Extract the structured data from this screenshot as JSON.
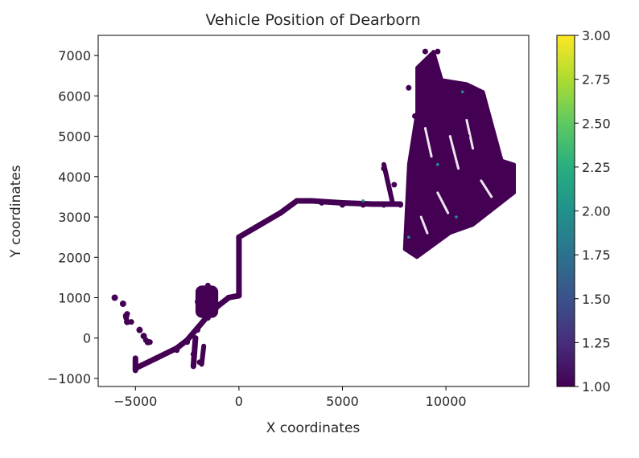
{
  "chart_data": {
    "type": "scatter",
    "title": "Vehicle Position of Dearborn",
    "xlabel": "X coordinates",
    "ylabel": "Y coordinates",
    "xlim": [
      -6800,
      14000
    ],
    "ylim": [
      -1200,
      7500
    ],
    "xticks": [
      -5000,
      0,
      5000,
      10000
    ],
    "xtick_labels": [
      "−5000",
      "0",
      "5000",
      "10000"
    ],
    "yticks": [
      -1000,
      0,
      1000,
      2000,
      3000,
      4000,
      5000,
      6000,
      7000
    ],
    "ytick_labels": [
      "−1000",
      "0",
      "1000",
      "2000",
      "3000",
      "4000",
      "5000",
      "6000",
      "7000"
    ],
    "grid": false,
    "colormap": "viridis",
    "colorbar": {
      "min": 1.0,
      "max": 3.0,
      "ticks": [
        1.0,
        1.25,
        1.5,
        1.75,
        2.0,
        2.25,
        2.5,
        2.75,
        3.0
      ],
      "tick_labels": [
        "1.00",
        "1.25",
        "1.50",
        "1.75",
        "2.00",
        "2.25",
        "2.50",
        "2.75",
        "3.00"
      ]
    },
    "point_color": "#440154",
    "accent_color": "#21918c",
    "points": [
      {
        "x": -6000,
        "y": 1000
      },
      {
        "x": -5600,
        "y": 850
      },
      {
        "x": -5400,
        "y": 600
      },
      {
        "x": -5200,
        "y": 400
      },
      {
        "x": -5450,
        "y": 500
      },
      {
        "x": -4800,
        "y": 200
      },
      {
        "x": -4500,
        "y": -50
      },
      {
        "x": -4300,
        "y": -100
      },
      {
        "x": -5000,
        "y": -700
      },
      {
        "x": -4000,
        "y": -500
      },
      {
        "x": -3000,
        "y": -300
      },
      {
        "x": -2500,
        "y": -100
      },
      {
        "x": -2000,
        "y": 200
      },
      {
        "x": -1500,
        "y": 500
      },
      {
        "x": -1000,
        "y": 800
      },
      {
        "x": -500,
        "y": 1000
      },
      {
        "x": -2200,
        "y": -400
      },
      {
        "x": -1900,
        "y": -600
      },
      {
        "x": -2100,
        "y": 0
      },
      {
        "x": -1800,
        "y": 1100
      },
      {
        "x": -1500,
        "y": 1300
      },
      {
        "x": -2000,
        "y": 900
      },
      {
        "x": -1200,
        "y": 700
      },
      {
        "x": 0,
        "y": 1200
      },
      {
        "x": 0,
        "y": 2500
      },
      {
        "x": 1000,
        "y": 2800
      },
      {
        "x": 2000,
        "y": 3100
      },
      {
        "x": 3000,
        "y": 3400
      },
      {
        "x": 4000,
        "y": 3350
      },
      {
        "x": 5000,
        "y": 3300
      },
      {
        "x": 6000,
        "y": 3300
      },
      {
        "x": 7000,
        "y": 3300
      },
      {
        "x": 7800,
        "y": 3300
      },
      {
        "x": 7000,
        "y": 4200
      },
      {
        "x": 7500,
        "y": 3800
      },
      {
        "x": 8200,
        "y": 2500
      },
      {
        "x": 8500,
        "y": 2100
      },
      {
        "x": 9000,
        "y": 3000
      },
      {
        "x": 9500,
        "y": 5000
      },
      {
        "x": 10000,
        "y": 4500
      },
      {
        "x": 10500,
        "y": 6000
      },
      {
        "x": 11000,
        "y": 5000
      },
      {
        "x": 12000,
        "y": 4200
      },
      {
        "x": 12500,
        "y": 4000
      },
      {
        "x": 13000,
        "y": 4300
      },
      {
        "x": 13200,
        "y": 3700
      },
      {
        "x": 11500,
        "y": 3200
      },
      {
        "x": 10000,
        "y": 2700
      },
      {
        "x": 9000,
        "y": 7100
      },
      {
        "x": 9600,
        "y": 7100
      },
      {
        "x": 8200,
        "y": 6200
      },
      {
        "x": 8500,
        "y": 5500
      },
      {
        "x": 11800,
        "y": 6000
      }
    ]
  }
}
